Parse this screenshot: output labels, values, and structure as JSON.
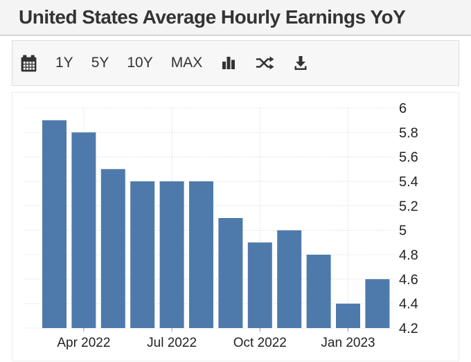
{
  "header": {
    "title": "United States Average Hourly Earnings YoY"
  },
  "toolbar": {
    "ranges": [
      {
        "label": "1Y"
      },
      {
        "label": "5Y"
      },
      {
        "label": "10Y"
      },
      {
        "label": "MAX"
      }
    ],
    "icons": [
      "calendar-icon",
      "bar-chart-type-icon",
      "shuffle-compare-icon",
      "download-icon"
    ]
  },
  "chart_data": {
    "type": "bar",
    "title": "United States Average Hourly Earnings YoY",
    "categories": [
      "Mar 2022",
      "Apr 2022",
      "May 2022",
      "Jun 2022",
      "Jul 2022",
      "Aug 2022",
      "Sep 2022",
      "Oct 2022",
      "Nov 2022",
      "Dec 2022",
      "Jan 2023",
      "Feb 2023"
    ],
    "values": [
      5.9,
      5.8,
      5.5,
      5.4,
      5.4,
      5.4,
      5.1,
      4.9,
      5.0,
      4.8,
      4.4,
      4.6
    ],
    "x_tick_labels": [
      "Apr 2022",
      "Jul 2022",
      "Oct 2022",
      "Jan 2023"
    ],
    "x_tick_indices": [
      1,
      4,
      7,
      10
    ],
    "y_ticks": [
      4.2,
      4.4,
      4.6,
      4.8,
      5,
      5.2,
      5.4,
      5.6,
      5.8,
      6
    ],
    "ylim": [
      4.2,
      6
    ],
    "xlabel": "",
    "ylabel": "",
    "legend": "none",
    "grid": "dotted",
    "y_axis_side": "right",
    "colors": {
      "bar": "#4d7aab",
      "gridline": "#c9c9c9",
      "axis_text": "#222222"
    }
  }
}
